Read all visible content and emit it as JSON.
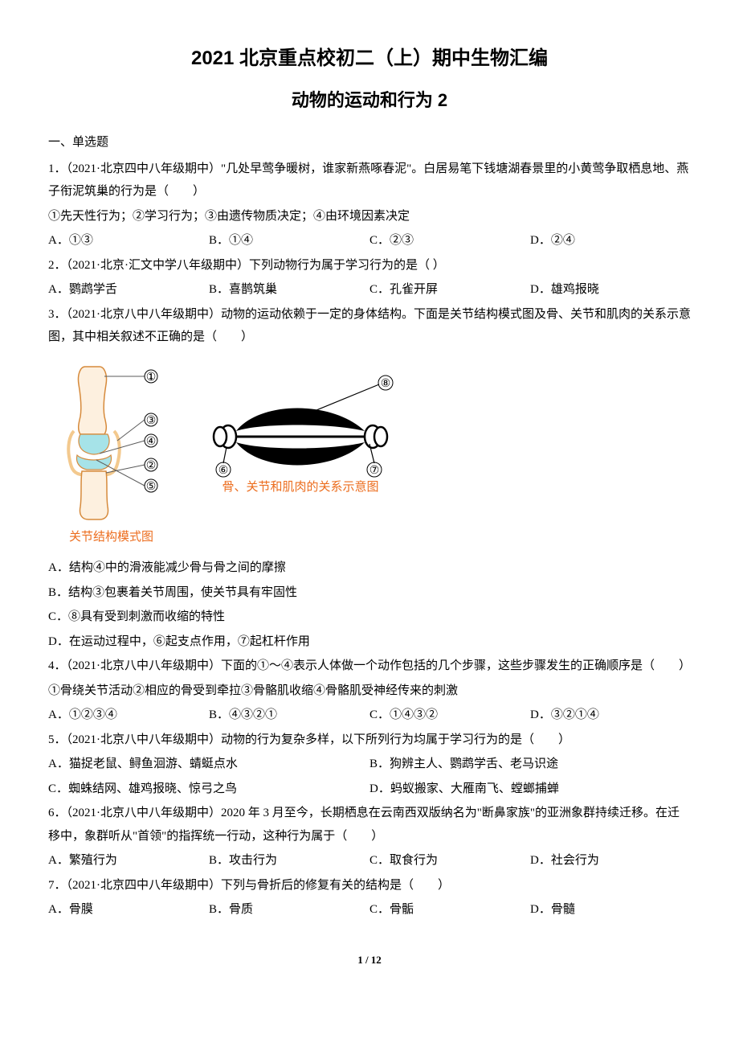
{
  "title_line1": "2021 北京重点校初二（上）期中生物汇编",
  "title_line2": "动物的运动和行为 2",
  "section_heading": "一、单选题",
  "questions": [
    {
      "stem": "1．（2021·北京四中八年级期中）\"几处早莺争暖树，谁家新燕啄春泥\"。白居易笔下钱塘湖春景里的小黄莺争取栖息地、燕子衔泥筑巢的行为是（　　）",
      "sub": "①先天性行为；②学习行为；③由遗传物质决定；④由环境因素决定",
      "opts": [
        "A．①③",
        "B．①④",
        "C．②③",
        "D．②④"
      ],
      "cols": 4
    },
    {
      "stem": "2．（2021·北京·汇文中学八年级期中）下列动物行为属于学习行为的是（  ）",
      "opts": [
        "A．鹦鹉学舌",
        "B．喜鹊筑巢",
        "C．孔雀开屏",
        "D．雄鸡报晓"
      ],
      "cols": 4
    },
    {
      "stem": "3．（2021·北京八中八年级期中）动物的运动依赖于一定的身体结构。下面是关节结构模式图及骨、关节和肌肉的关系示意图，其中相关叙述不正确的是（　　）",
      "figure": true,
      "opts": [
        "A．结构④中的滑液能减少骨与骨之间的摩擦",
        "B．结构③包裹着关节周围，使关节具有牢固性",
        "C．⑧具有受到刺激而收缩的特性",
        "D．在运动过程中，⑥起支点作用，⑦起杠杆作用"
      ],
      "cols": 1
    },
    {
      "stem": "4．（2021·北京八中八年级期中）下面的①～④表示人体做一个动作包括的几个步骤，这些步骤发生的正确顺序是（　　）",
      "sub": "①骨绕关节活动②相应的骨受到牵拉③骨骼肌收缩④骨骼肌受神经传来的刺激",
      "opts": [
        "A．①②③④",
        "B．④③②①",
        "C．①④③②",
        "D．③②①④"
      ],
      "cols": 4
    },
    {
      "stem": "5．（2021·北京八中八年级期中）动物的行为复杂多样，以下所列行为均属于学习行为的是（　　）",
      "opts": [
        "A．猫捉老鼠、鲟鱼洄游、蜻蜓点水",
        "B．狗辨主人、鹦鹉学舌、老马识途",
        "C．蜘蛛结网、雄鸡报晓、惊弓之鸟",
        "D．蚂蚁搬家、大雁南飞、螳螂捕蝉"
      ],
      "cols": 2
    },
    {
      "stem": "6．（2021·北京八中八年级期中）2020 年 3 月至今，长期栖息在云南西双版纳名为\"断鼻家族\"的亚洲象群持续迁移。在迁移中，象群听从\"首领\"的指挥统一行动，这种行为属于（　　）",
      "opts": [
        "A．繁殖行为",
        "B．攻击行为",
        "C．取食行为",
        "D．社会行为"
      ],
      "cols": 4
    },
    {
      "stem": "7．（2021·北京四中八年级期中）下列与骨折后的修复有关的结构是（　　）",
      "opts": [
        "A．骨膜",
        "B．骨质",
        "C．骨骺",
        "D．骨髓"
      ],
      "cols": 4
    }
  ],
  "figure": {
    "joint_labels": [
      "①",
      "②",
      "③",
      "④",
      "⑤"
    ],
    "muscle_labels": [
      "⑥",
      "⑦",
      "⑧"
    ],
    "muscle_caption": "骨、关节和肌肉的关系示意图",
    "joint_caption": "关节结构模式图",
    "colors": {
      "bone_fill": "#fdf0df",
      "bone_stroke": "#d68a3b",
      "cartilage": "#a6e3e8",
      "capsule": "#f3c98e",
      "leader": "#5b5b5b",
      "muscle_line": "#000000"
    }
  },
  "page_number": "1 / 12"
}
